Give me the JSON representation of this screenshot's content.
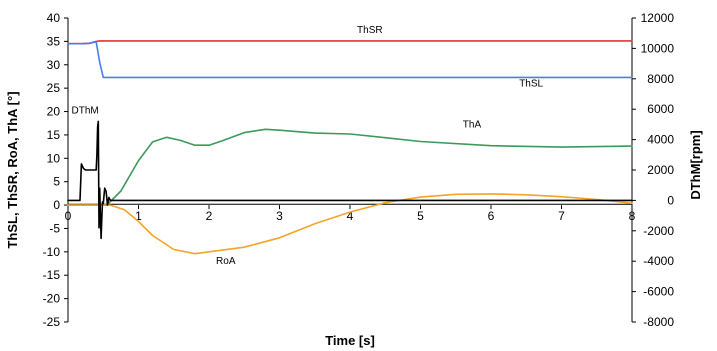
{
  "chart_data": {
    "type": "line",
    "title": "",
    "xlabel": "Time [s]",
    "ylabel_left": "ThSL, ThSR, RoA, ThA [°]",
    "ylabel_right": "DThM[rpm]",
    "xlim": [
      0,
      8
    ],
    "ylim_left": [
      -25,
      40
    ],
    "ylim_right": [
      -8000,
      12000
    ],
    "x_ticks": [
      "0",
      "1",
      "2",
      "3",
      "4",
      "5",
      "6",
      "7",
      "8"
    ],
    "y_left_ticks": [
      "-25",
      "-20",
      "-15",
      "-10",
      "-5",
      "0",
      "5",
      "10",
      "15",
      "20",
      "25",
      "30",
      "35",
      "40"
    ],
    "y_right_ticks": [
      "-8000",
      "-6000",
      "-4000",
      "-2000",
      "0",
      "2000",
      "4000",
      "6000",
      "8000",
      "10000",
      "12000"
    ],
    "grid": false,
    "legend": "none (inline series labels)",
    "series": [
      {
        "name": "ThSR",
        "axis": "left",
        "color": "#e8303a",
        "x": [
          0,
          0.2,
          0.3,
          0.4,
          0.45,
          1,
          2,
          3,
          4,
          5,
          6,
          7,
          8
        ],
        "y": [
          34.5,
          34.5,
          34.6,
          35.0,
          35.1,
          35.1,
          35.1,
          35.1,
          35.1,
          35.1,
          35.1,
          35.1,
          35.1
        ]
      },
      {
        "name": "ThSL",
        "axis": "left",
        "color": "#4a7de6",
        "x": [
          0,
          0.2,
          0.3,
          0.4,
          0.45,
          0.5,
          1,
          2,
          3,
          4,
          5,
          6,
          7,
          8
        ],
        "y": [
          34.5,
          34.5,
          34.6,
          34.9,
          30.5,
          27.3,
          27.3,
          27.3,
          27.3,
          27.3,
          27.3,
          27.3,
          27.3,
          27.3
        ]
      },
      {
        "name": "ThA",
        "axis": "left",
        "color": "#3c9a5c",
        "x": [
          0,
          0.55,
          0.75,
          1.0,
          1.2,
          1.4,
          1.6,
          1.8,
          2.0,
          2.2,
          2.5,
          2.8,
          3.0,
          3.5,
          4.0,
          4.5,
          5.0,
          6.0,
          7.0,
          8.0
        ],
        "y": [
          0,
          0,
          3.0,
          9.5,
          13.5,
          14.5,
          13.8,
          12.8,
          12.8,
          13.8,
          15.5,
          16.2,
          16.0,
          15.4,
          15.2,
          14.4,
          13.6,
          12.7,
          12.4,
          12.6
        ]
      },
      {
        "name": "RoA",
        "axis": "left",
        "color": "#f4a428",
        "x": [
          0,
          0.6,
          0.8,
          1.0,
          1.2,
          1.5,
          1.8,
          2.0,
          2.5,
          3.0,
          3.5,
          4.0,
          4.5,
          5.0,
          5.5,
          6.0,
          6.5,
          7.0,
          7.5,
          8.0
        ],
        "y": [
          0,
          0,
          -1.0,
          -3.5,
          -6.5,
          -9.5,
          -10.4,
          -10.0,
          -9.0,
          -7.0,
          -4.0,
          -1.5,
          0.5,
          1.7,
          2.3,
          2.4,
          2.2,
          1.8,
          1.2,
          0.4
        ]
      },
      {
        "name": "DThM",
        "axis": "right",
        "color": "#000000",
        "x": [
          0,
          0.17,
          0.19,
          0.22,
          0.25,
          0.4,
          0.41,
          0.42,
          0.43,
          0.44,
          0.45,
          0.46,
          0.47,
          0.48,
          0.49,
          0.5,
          0.52,
          0.54,
          0.56,
          0.58,
          0.6,
          0.62,
          0.7,
          8.0
        ],
        "y": [
          0,
          0,
          2400,
          2100,
          2000,
          2000,
          3000,
          4800,
          5200,
          -1800,
          800,
          -1000,
          -2500,
          -1200,
          -100,
          -200,
          800,
          600,
          -300,
          200,
          0,
          0,
          0,
          0
        ]
      }
    ],
    "annotations": [
      {
        "text": "ThSR",
        "x": 4.1,
        "y": 36.8,
        "axis": "left"
      },
      {
        "text": "ThSL",
        "x": 6.4,
        "y": 25.4,
        "axis": "left"
      },
      {
        "text": "ThA",
        "x": 5.6,
        "y": 16.6,
        "axis": "left"
      },
      {
        "text": "RoA",
        "x": 2.1,
        "y": -12.6,
        "axis": "left"
      },
      {
        "text": "DThM",
        "x": 0.05,
        "y": 19.6,
        "axis": "left"
      }
    ]
  }
}
